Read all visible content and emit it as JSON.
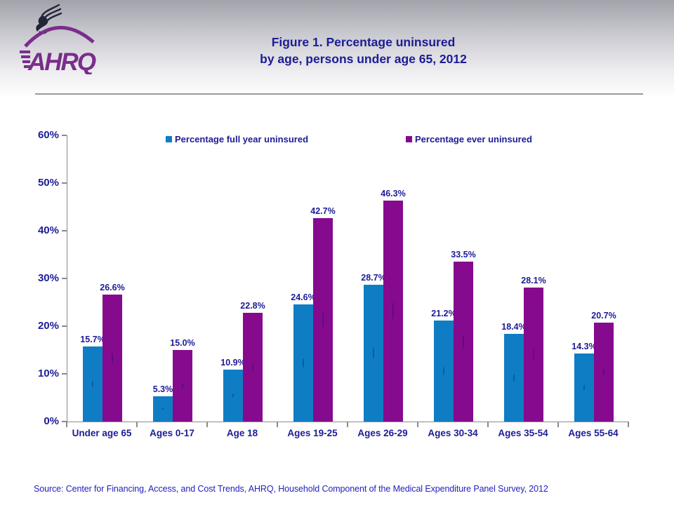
{
  "header": {
    "logo_text": "AHRQ",
    "title_line1": "Figure 1. Percentage uninsured",
    "title_line2": "by age, persons under age 65, 2012"
  },
  "chart_data": {
    "type": "bar",
    "title": "Figure 1. Percentage uninsured by age, persons under age 65, 2012",
    "categories": [
      "Under age 65",
      "Ages 0-17",
      "Age 18",
      "Ages 19-25",
      "Ages 26-29",
      "Ages 30-34",
      "Ages 35-54",
      "Ages 55-64"
    ],
    "series": [
      {
        "name": "Percentage full year uninsured",
        "color": "#0f7dc4",
        "values": [
          15.7,
          5.3,
          10.9,
          24.6,
          28.7,
          21.2,
          18.4,
          14.3
        ]
      },
      {
        "name": "Percentage ever uninsured",
        "color": "#850a8e",
        "values": [
          26.6,
          15.0,
          22.8,
          42.7,
          46.3,
          33.5,
          28.1,
          20.7
        ]
      }
    ],
    "yticks": [
      "0%",
      "10%",
      "20%",
      "30%",
      "40%",
      "50%",
      "60%"
    ],
    "ylim": [
      0,
      60
    ],
    "grid": false,
    "data_labels": true,
    "legend_position": "top-inside",
    "axis_color": "#8a8a8a",
    "label_color": "#1c1c96"
  },
  "footer": {
    "source": "Source: Center for Financing, Access, and Cost Trends, AHRQ, Household Component of the Medical Expenditure Panel Survey, 2012"
  }
}
